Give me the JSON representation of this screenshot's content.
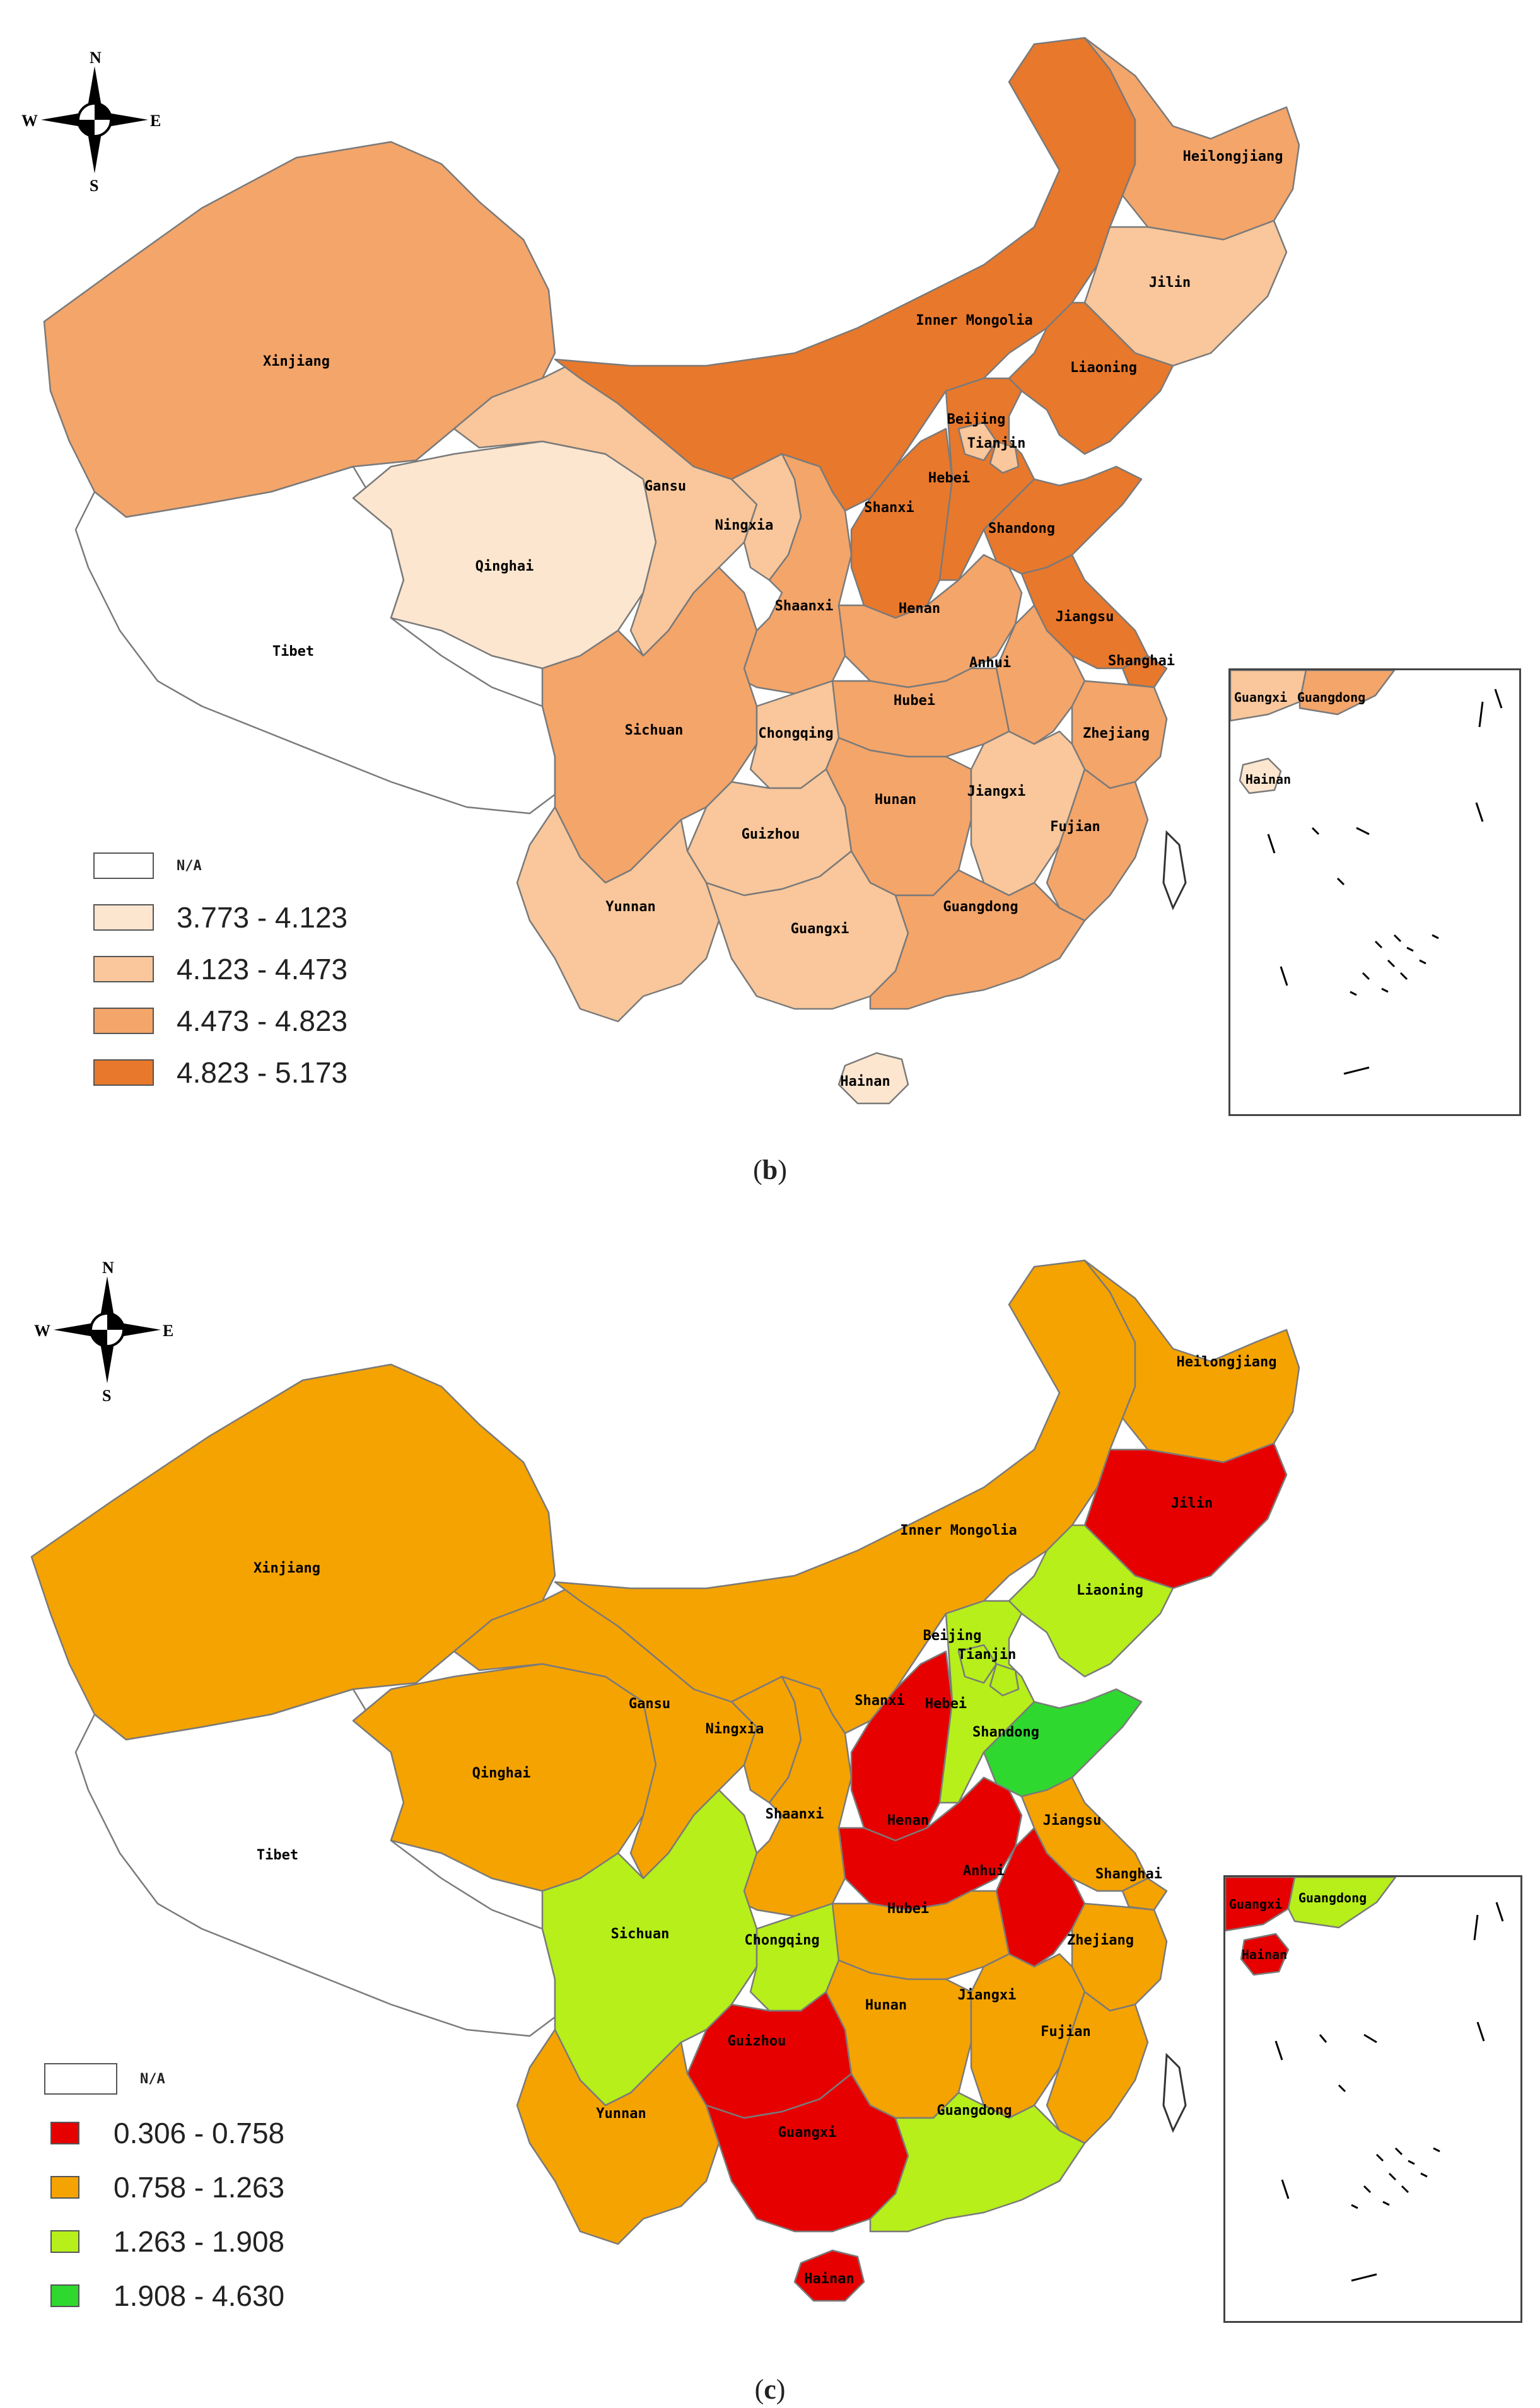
{
  "panels": [
    {
      "caption_open": "(",
      "caption_letter": "b",
      "caption_close": ")",
      "compass": {
        "n": "N",
        "s": "S",
        "e": "E",
        "w": "W"
      },
      "legend": [
        {
          "label": "N/A",
          "color": "#ffffff"
        },
        {
          "label": "3.773 - 4.123",
          "color": "#fde6cf"
        },
        {
          "label": "4.123 - 4.473",
          "color": "#f9c79b"
        },
        {
          "label": "4.473 - 4.823",
          "color": "#f4a56a"
        },
        {
          "label": "4.823 - 5.173",
          "color": "#e8782c"
        }
      ],
      "provinces": {
        "Heilongjiang": "#f4a56a",
        "Jilin": "#f9c79b",
        "Liaoning": "#e8782c",
        "Inner Mongolia": "#e8782c",
        "Xinjiang": "#f4a56a",
        "Tibet": "#ffffff",
        "Qinghai": "#fde6cf",
        "Gansu": "#f9c79b",
        "Ningxia": "#f9c79b",
        "Shaanxi": "#f4a56a",
        "Shanxi": "#e8782c",
        "Hebei": "#e8782c",
        "Beijing": "#f9c79b",
        "Tianjin": "#f9c79b",
        "Shandong": "#e8782c",
        "Henan": "#f4a56a",
        "Jiangsu": "#e8782c",
        "Shanghai": "#e8782c",
        "Anhui": "#f4a56a",
        "Hubei": "#f4a56a",
        "Zhejiang": "#f4a56a",
        "Sichuan": "#f4a56a",
        "Chongqing": "#f9c79b",
        "Hunan": "#f4a56a",
        "Jiangxi": "#f9c79b",
        "Fujian": "#f4a56a",
        "Guizhou": "#f9c79b",
        "Yunnan": "#f9c79b",
        "Guangxi": "#f9c79b",
        "Guangdong": "#f4a56a",
        "Hainan": "#fde6cf"
      },
      "inset_labels": [
        "Guangxi",
        "Guangdong",
        "Hainan"
      ]
    },
    {
      "caption_open": "(",
      "caption_letter": "c",
      "caption_close": ")",
      "compass": {
        "n": "N",
        "s": "S",
        "e": "E",
        "w": "W"
      },
      "legend": [
        {
          "label": "N/A",
          "color": "#ffffff"
        },
        {
          "label": "0.306 - 0.758",
          "color": "#e60000"
        },
        {
          "label": "0.758 - 1.263",
          "color": "#f5a300"
        },
        {
          "label": "1.263 - 1.908",
          "color": "#b6ef1a"
        },
        {
          "label": "1.908 - 4.630",
          "color": "#2fd82f"
        }
      ],
      "provinces": {
        "Heilongjiang": "#f5a300",
        "Jilin": "#e60000",
        "Liaoning": "#b6ef1a",
        "Inner Mongolia": "#f5a300",
        "Xinjiang": "#f5a300",
        "Tibet": "#ffffff",
        "Qinghai": "#f5a300",
        "Gansu": "#f5a300",
        "Ningxia": "#f5a300",
        "Shaanxi": "#f5a300",
        "Shanxi": "#e60000",
        "Hebei": "#b6ef1a",
        "Beijing": "#b6ef1a",
        "Tianjin": "#b6ef1a",
        "Shandong": "#2fd82f",
        "Henan": "#e60000",
        "Jiangsu": "#f5a300",
        "Shanghai": "#f5a300",
        "Anhui": "#e60000",
        "Hubei": "#f5a300",
        "Zhejiang": "#f5a300",
        "Sichuan": "#b6ef1a",
        "Chongqing": "#b6ef1a",
        "Hunan": "#f5a300",
        "Jiangxi": "#f5a300",
        "Fujian": "#f5a300",
        "Guizhou": "#e60000",
        "Yunnan": "#f5a300",
        "Guangxi": "#e60000",
        "Guangdong": "#b6ef1a",
        "Hainan": "#e60000"
      },
      "inset_labels": [
        "Guangxi",
        "Guangdong",
        "Hainan"
      ]
    }
  ]
}
